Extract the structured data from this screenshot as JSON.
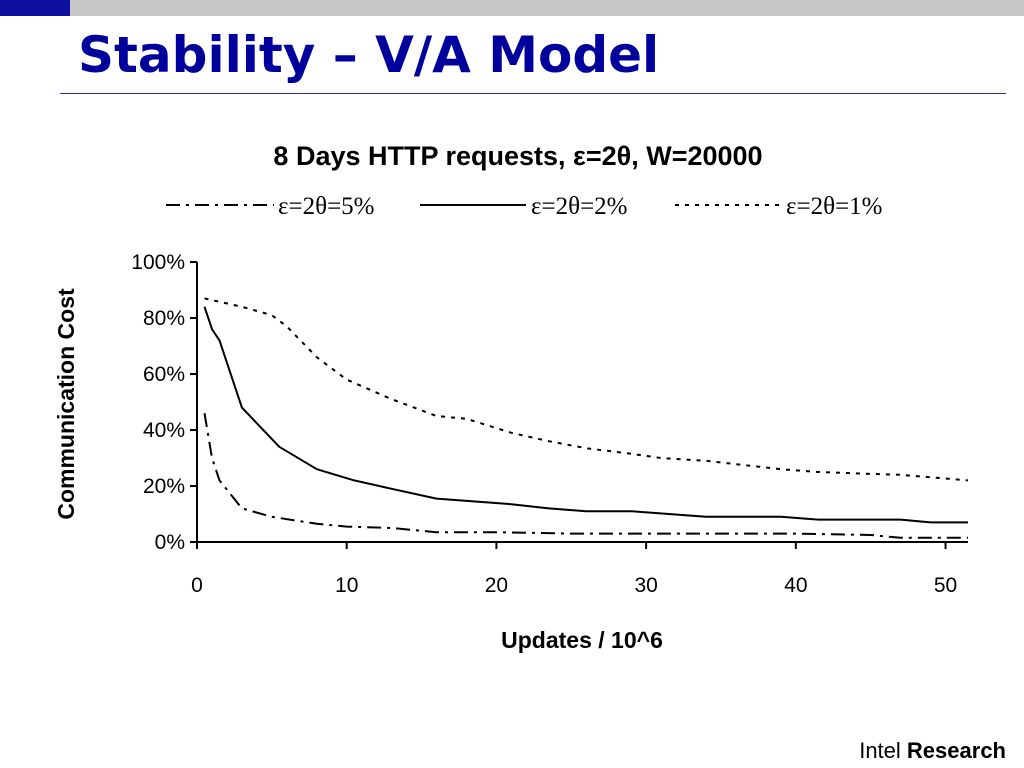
{
  "slide": {
    "title": "Stability – V/A Model",
    "footer_brand": "Intel",
    "footer_bold": "Research"
  },
  "chart_data": {
    "type": "line",
    "title": "8 Days HTTP requests, ε=2θ, W=20000",
    "xlabel": "Updates / 10^6",
    "ylabel": "Communication Cost",
    "xlim": [
      0,
      51.5
    ],
    "ylim": [
      0,
      100
    ],
    "x_ticks": [
      0,
      10,
      20,
      30,
      40,
      50
    ],
    "y_ticks": [
      0,
      20,
      40,
      60,
      80,
      100
    ],
    "y_tick_labels": [
      "0%",
      "20%",
      "40%",
      "60%",
      "80%",
      "100%"
    ],
    "legend_position": "top",
    "grid": false,
    "series": [
      {
        "name": "ε=2θ=5%",
        "style": "dash-dot",
        "color": "#000000",
        "x": [
          0.5,
          1,
          1.5,
          3,
          5,
          8,
          10,
          13,
          16,
          20,
          25,
          30,
          35,
          40,
          45,
          47,
          51.5
        ],
        "y": [
          46,
          30,
          22,
          12,
          9,
          6.5,
          5.5,
          5,
          3.5,
          3.5,
          3,
          3,
          3,
          3,
          2.5,
          1.5,
          1.5
        ]
      },
      {
        "name": "ε=2θ=2%",
        "style": "solid",
        "color": "#000000",
        "x": [
          0.5,
          1,
          1.5,
          3,
          5.5,
          8,
          10.5,
          13,
          16,
          21,
          23.5,
          26,
          29,
          34,
          39,
          41.5,
          44,
          47,
          49,
          51.5
        ],
        "y": [
          84,
          76,
          72,
          48,
          34,
          26,
          22,
          19,
          15.5,
          13.5,
          12,
          11,
          11,
          9,
          9,
          8,
          8,
          8,
          7,
          7
        ]
      },
      {
        "name": "ε=2θ=1%",
        "style": "dotted",
        "color": "#000000",
        "x": [
          0.5,
          3,
          5,
          6,
          8,
          10,
          13,
          16,
          18,
          21,
          23.5,
          26,
          29,
          31,
          34,
          39,
          41.5,
          44,
          47,
          51.5
        ],
        "y": [
          87,
          84,
          81,
          77,
          66,
          58,
          51,
          45,
          44,
          39,
          36,
          33.5,
          31.5,
          30,
          29,
          26,
          25,
          24.5,
          24,
          22
        ]
      }
    ]
  }
}
